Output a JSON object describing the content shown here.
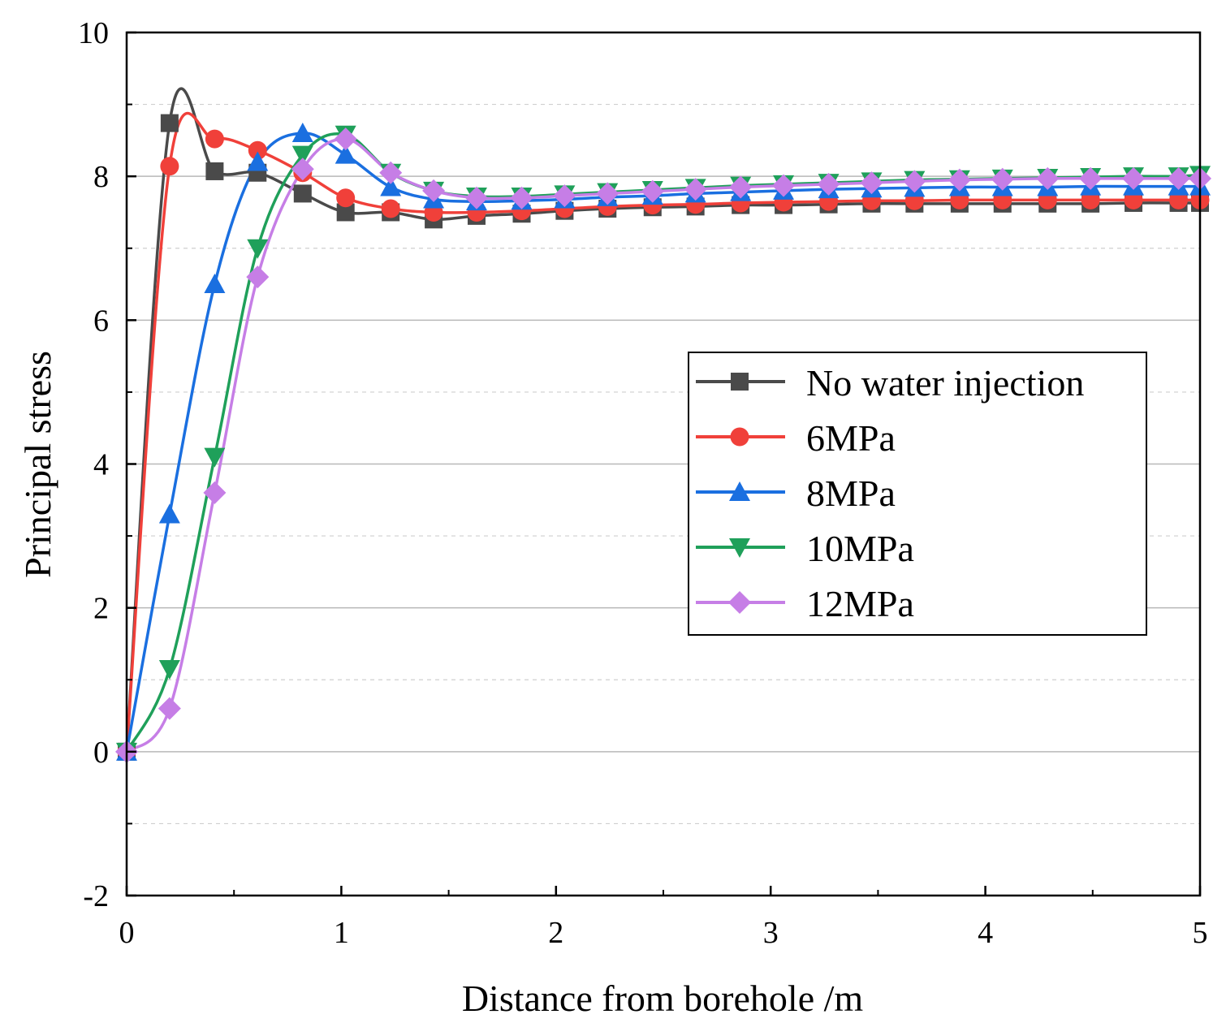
{
  "chart_data": {
    "type": "line",
    "xlabel": "Distance from borehole /m",
    "ylabel": "Principal stress",
    "xlim": [
      0,
      5
    ],
    "ylim": [
      -2,
      10
    ],
    "x_ticks": [
      "0",
      "1",
      "2",
      "3",
      "4",
      "5"
    ],
    "y_ticks": [
      "-2",
      "0",
      "2",
      "4",
      "6",
      "8",
      "10"
    ],
    "grid": "horizontal dashed",
    "legend_position": "middle-right",
    "series": [
      {
        "name": "No water injection",
        "color": "#4a4a4a",
        "marker": "square",
        "x": [
          0,
          0.2,
          0.41,
          0.61,
          0.82,
          1.02,
          1.23,
          1.43,
          1.63,
          1.84,
          2.04,
          2.24,
          2.45,
          2.65,
          2.86,
          3.06,
          3.27,
          3.47,
          3.67,
          3.88,
          4.08,
          4.29,
          4.49,
          4.69,
          4.9,
          5.0
        ],
        "y": [
          0,
          8.74,
          8.07,
          8.05,
          7.76,
          7.5,
          7.5,
          7.4,
          7.45,
          7.48,
          7.52,
          7.55,
          7.57,
          7.58,
          7.6,
          7.6,
          7.61,
          7.62,
          7.62,
          7.62,
          7.62,
          7.62,
          7.62,
          7.63,
          7.63,
          7.63
        ]
      },
      {
        "name": "6MPa",
        "color": "#f0403a",
        "marker": "circle",
        "x": [
          0,
          0.2,
          0.41,
          0.61,
          0.82,
          1.02,
          1.23,
          1.43,
          1.63,
          1.84,
          2.04,
          2.24,
          2.45,
          2.65,
          2.86,
          3.06,
          3.27,
          3.47,
          3.67,
          3.88,
          4.08,
          4.29,
          4.49,
          4.69,
          4.9,
          5.0
        ],
        "y": [
          0,
          8.14,
          8.52,
          8.36,
          8.05,
          7.7,
          7.55,
          7.5,
          7.5,
          7.52,
          7.55,
          7.58,
          7.6,
          7.61,
          7.63,
          7.64,
          7.65,
          7.66,
          7.66,
          7.67,
          7.67,
          7.67,
          7.67,
          7.67,
          7.67,
          7.67
        ]
      },
      {
        "name": "8MPa",
        "color": "#1a6fe0",
        "marker": "triangle-up",
        "x": [
          0,
          0.2,
          0.41,
          0.61,
          0.82,
          1.02,
          1.23,
          1.43,
          1.63,
          1.84,
          2.04,
          2.24,
          2.45,
          2.65,
          2.86,
          3.06,
          3.27,
          3.47,
          3.67,
          3.88,
          4.08,
          4.29,
          4.49,
          4.69,
          4.9,
          5.0
        ],
        "y": [
          0,
          3.3,
          6.5,
          8.2,
          8.6,
          8.3,
          7.85,
          7.68,
          7.65,
          7.66,
          7.68,
          7.71,
          7.73,
          7.76,
          7.78,
          7.8,
          7.82,
          7.83,
          7.84,
          7.85,
          7.85,
          7.85,
          7.86,
          7.86,
          7.86,
          7.86
        ]
      },
      {
        "name": "10MPa",
        "color": "#1fa05a",
        "marker": "triangle-down",
        "x": [
          0,
          0.2,
          0.41,
          0.61,
          0.82,
          1.02,
          1.23,
          1.43,
          1.63,
          1.84,
          2.04,
          2.24,
          2.45,
          2.65,
          2.86,
          3.06,
          3.27,
          3.47,
          3.67,
          3.88,
          4.08,
          4.29,
          4.49,
          4.69,
          4.9,
          5.0
        ],
        "y": [
          0,
          1.15,
          4.1,
          7.0,
          8.3,
          8.58,
          8.05,
          7.8,
          7.72,
          7.72,
          7.75,
          7.78,
          7.81,
          7.84,
          7.87,
          7.89,
          7.91,
          7.93,
          7.95,
          7.96,
          7.97,
          7.98,
          7.99,
          8.0,
          8.0,
          8.02
        ]
      },
      {
        "name": "12MPa",
        "color": "#c67ee6",
        "marker": "diamond",
        "x": [
          0,
          0.2,
          0.41,
          0.61,
          0.82,
          1.02,
          1.23,
          1.43,
          1.63,
          1.84,
          2.04,
          2.24,
          2.45,
          2.65,
          2.86,
          3.06,
          3.27,
          3.47,
          3.67,
          3.88,
          4.08,
          4.29,
          4.49,
          4.69,
          4.9,
          5.0
        ],
        "y": [
          0,
          0.6,
          3.6,
          6.6,
          8.1,
          8.52,
          8.05,
          7.8,
          7.7,
          7.7,
          7.73,
          7.76,
          7.79,
          7.82,
          7.85,
          7.87,
          7.89,
          7.91,
          7.93,
          7.95,
          7.96,
          7.97,
          7.97,
          7.97,
          7.97,
          7.97
        ]
      }
    ]
  }
}
